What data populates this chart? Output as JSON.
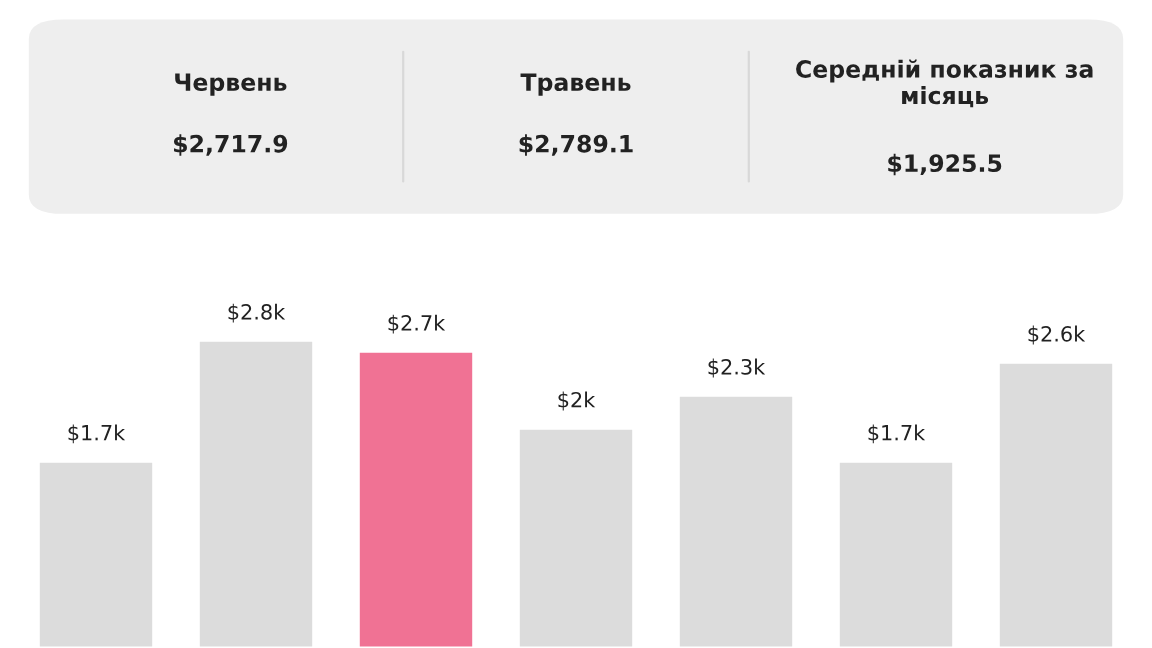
{
  "chart_data": {
    "type": "bar",
    "categories": [
      null,
      null,
      null,
      null,
      null,
      null,
      null
    ],
    "values": [
      1.7,
      2.8,
      2.7,
      2.0,
      2.3,
      1.7,
      2.6
    ],
    "colors": [
      "#dcdcdc",
      "#dcdcdc",
      "#f07294",
      "#dcdcdc",
      "#dcdcdc",
      "#dcdcdc",
      "#dcdcdc"
    ],
    "value_labels": [
      "$1.7k",
      "$2.8k",
      "$2.7k",
      "$2k",
      "$2.3k",
      "$1.7k",
      "$2.6k"
    ],
    "annotations": [
      "Червень",
      "$2,717.9",
      "Травень",
      "$2,789.1",
      "Середній показник за\nмісяць",
      "$1,925.5"
    ]
  }
}
